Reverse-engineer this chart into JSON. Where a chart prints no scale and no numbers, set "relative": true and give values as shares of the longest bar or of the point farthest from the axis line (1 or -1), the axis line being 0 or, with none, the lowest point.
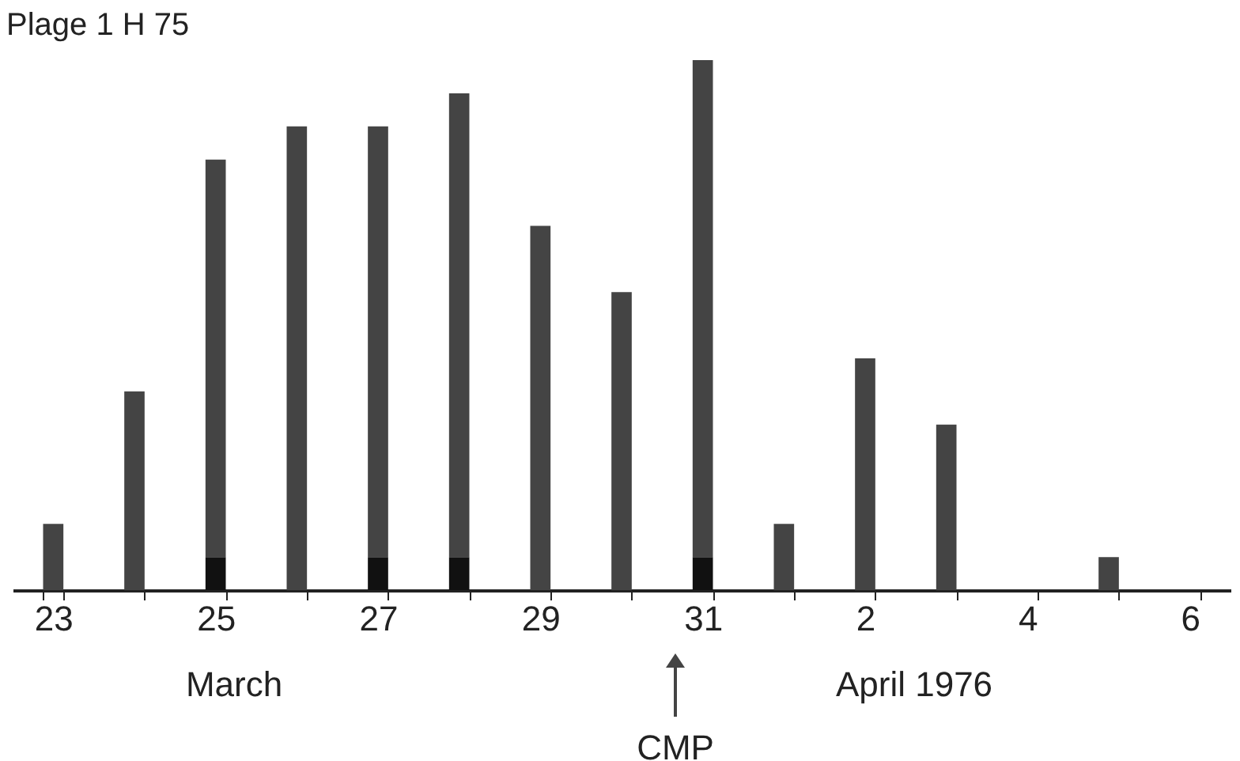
{
  "chart_data": {
    "type": "bar",
    "title": "Plage 1 H 75",
    "relative": true,
    "stacked": true,
    "categories": [
      "23",
      null,
      "25",
      null,
      "27",
      null,
      "29",
      null,
      "31",
      null,
      "2",
      null,
      "4",
      null,
      "6"
    ],
    "series": [
      {
        "color": "#111111",
        "values": [
          null,
          null,
          0.0625,
          null,
          0.0625,
          0.0625,
          null,
          null,
          0.0625,
          null,
          null,
          null,
          null,
          null,
          null
        ]
      },
      {
        "color": "#444444",
        "values": [
          0.125,
          0.375,
          0.75,
          0.875,
          0.8125,
          0.875,
          0.6875,
          0.5625,
          0.9375,
          0.125,
          0.4375,
          0.3125,
          null,
          0.0625,
          null
        ]
      }
    ],
    "annotations": [
      "March",
      "April 1976",
      "CMP"
    ],
    "grid": false
  }
}
